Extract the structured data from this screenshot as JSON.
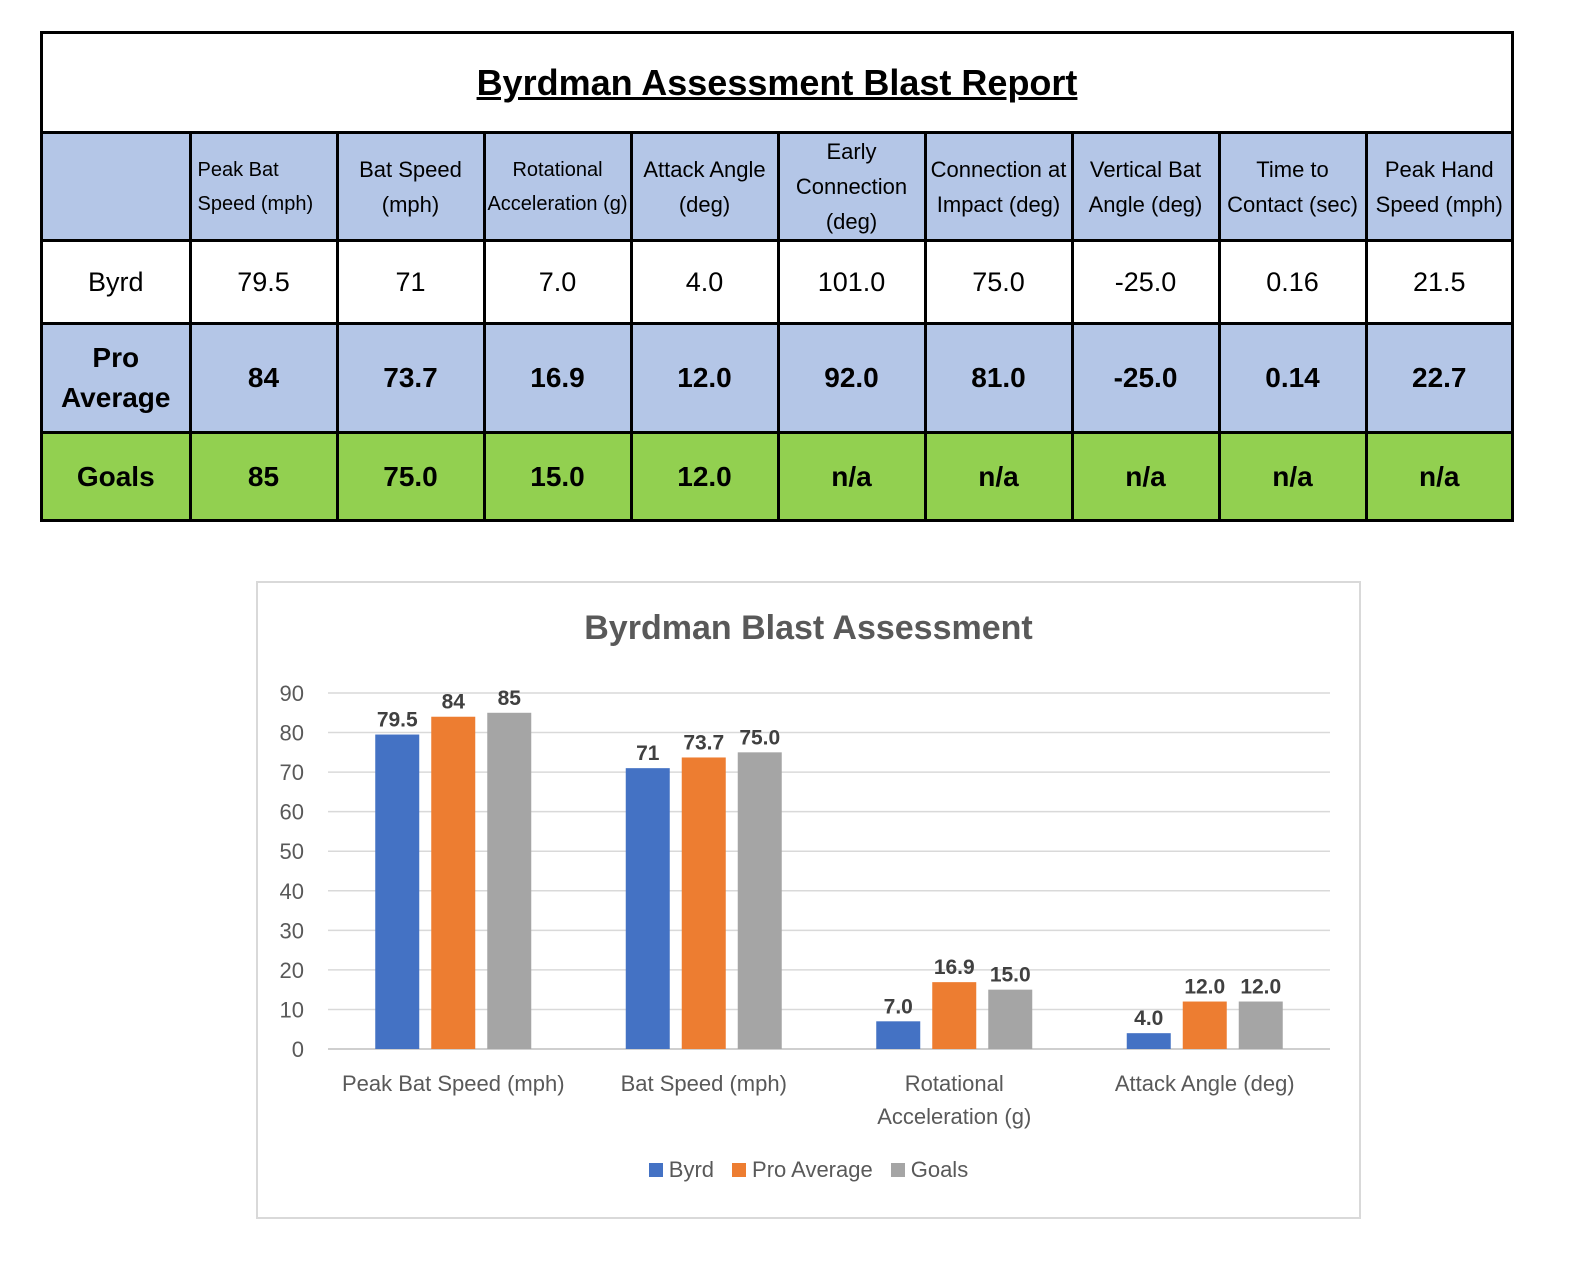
{
  "report": {
    "title": "Byrdman Assessment Blast Report",
    "headers": [
      "",
      "Peak Bat Speed (mph)",
      "Bat Speed (mph)",
      "Rotational Acceleration (g)",
      "Attack Angle (deg)",
      "Early Connection (deg)",
      "Connection at Impact (deg)",
      "Vertical Bat Angle (deg)",
      "Time to Contact (sec)",
      "Peak Hand Speed (mph)"
    ],
    "rows": [
      {
        "label": "Byrd",
        "values": [
          "79.5",
          "71",
          "7.0",
          "4.0",
          "101.0",
          "75.0",
          "-25.0",
          "0.16",
          "21.5"
        ]
      },
      {
        "label": "Pro Average",
        "values": [
          "84",
          "73.7",
          "16.9",
          "12.0",
          "92.0",
          "81.0",
          "-25.0",
          "0.14",
          "22.7"
        ]
      },
      {
        "label": "Goals",
        "values": [
          "85",
          "75.0",
          "15.0",
          "12.0",
          "n/a",
          "n/a",
          "n/a",
          "n/a",
          "n/a"
        ]
      }
    ]
  },
  "chart_data": {
    "type": "bar",
    "title": "Byrdman Blast Assessment",
    "xlabel": "",
    "ylabel": "",
    "categories": [
      "Peak Bat Speed (mph)",
      "Bat Speed (mph)",
      "Rotational Acceleration (g)",
      "Attack Angle (deg)"
    ],
    "series": [
      {
        "name": "Byrd",
        "color": "#4472c4",
        "values": [
          79.5,
          71,
          7.0,
          4.0
        ],
        "labels": [
          "79.5",
          "71",
          "7.0",
          "4.0"
        ]
      },
      {
        "name": "Pro Average",
        "color": "#ed7d31",
        "values": [
          84,
          73.7,
          16.9,
          12.0
        ],
        "labels": [
          "84",
          "73.7",
          "16.9",
          "12.0"
        ]
      },
      {
        "name": "Goals",
        "color": "#a5a5a5",
        "values": [
          85,
          75.0,
          15.0,
          12.0
        ],
        "labels": [
          "85",
          "75.0",
          "15.0",
          "12.0"
        ]
      }
    ],
    "ylim": [
      0,
      90
    ],
    "yticks": [
      0,
      10,
      20,
      30,
      40,
      50,
      60,
      70,
      80,
      90
    ],
    "grid": true,
    "legend_position": "bottom"
  }
}
